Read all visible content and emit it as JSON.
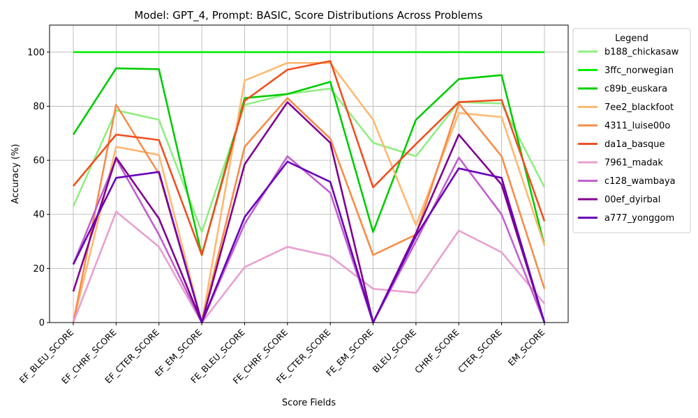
{
  "chart_data": {
    "type": "line",
    "title": "Model: GPT_4, Prompt: BASIC, Score Distributions Across Problems",
    "xlabel": "Score Fields",
    "ylabel": "Accuracy (%)",
    "ylim": [
      0,
      110
    ],
    "yticks": [
      0,
      20,
      40,
      60,
      80,
      100
    ],
    "grid": true,
    "legend_title": "Legend",
    "legend_position": "outside-right",
    "categories": [
      "EF_BLEU_SCORE",
      "EF_CHRF_SCORE",
      "EF_CTER_SCORE",
      "EF_EM_SCORE",
      "FE_BLEU_SCORE",
      "FE_CHRF_SCORE",
      "FE_CTER_SCORE",
      "FE_EM_SCORE",
      "BLEU_SCORE",
      "CHRF_SCORE",
      "CTER_SCORE",
      "EM_SCORE"
    ],
    "series": [
      {
        "name": "b188_chickasaw",
        "color": "#90ee80",
        "values": [
          43,
          78.5,
          75,
          33.5,
          80.5,
          84.5,
          86.5,
          66.5,
          61.5,
          81.5,
          81,
          50
        ]
      },
      {
        "name": "3ffc_norwegian",
        "color": "#00ee00",
        "values": [
          100,
          100,
          100,
          100,
          100,
          100,
          100,
          100,
          100,
          100,
          100,
          100
        ]
      },
      {
        "name": "c89b_euskara",
        "color": "#00cc00",
        "values": [
          69.5,
          94,
          93.7,
          25,
          83,
          84.5,
          89,
          33.5,
          75,
          90,
          91.5,
          28.5
        ]
      },
      {
        "name": "7ee2_blackfoot",
        "color": "#ffb870",
        "values": [
          0,
          65,
          62,
          0,
          89.5,
          96,
          96,
          75,
          36,
          77.5,
          76,
          28.5
        ]
      },
      {
        "name": "4311_luise00o",
        "color": "#f78c48",
        "values": [
          0,
          80.5,
          55,
          0,
          65,
          83,
          68,
          25,
          32.5,
          81,
          61.5,
          12.5
        ]
      },
      {
        "name": "da1a_basque",
        "color": "#f05020",
        "values": [
          50.5,
          69.5,
          67.5,
          25,
          82,
          93.5,
          96.7,
          50,
          66,
          81.5,
          82.3,
          37.5
        ]
      },
      {
        "name": "7961_madak",
        "color": "#e8a0d0",
        "values": [
          0,
          41,
          28,
          0,
          20.5,
          28,
          24.5,
          12.5,
          11,
          34,
          26,
          7
        ]
      },
      {
        "name": "c128_wambaya",
        "color": "#c060d0",
        "values": [
          21.5,
          60.5,
          32.5,
          0,
          36.5,
          61.5,
          48,
          0,
          30,
          61,
          40,
          0
        ]
      },
      {
        "name": "00ef_dyirbal",
        "color": "#800090",
        "values": [
          11.5,
          61,
          38.5,
          0,
          58.5,
          81.5,
          66.5,
          0,
          33,
          69.5,
          51,
          0
        ]
      },
      {
        "name": "a777_yonggom",
        "color": "#6a00b8",
        "values": [
          21.5,
          53.5,
          55.7,
          0,
          39,
          59.5,
          52,
          0,
          32,
          57,
          53.5,
          0
        ]
      }
    ]
  }
}
